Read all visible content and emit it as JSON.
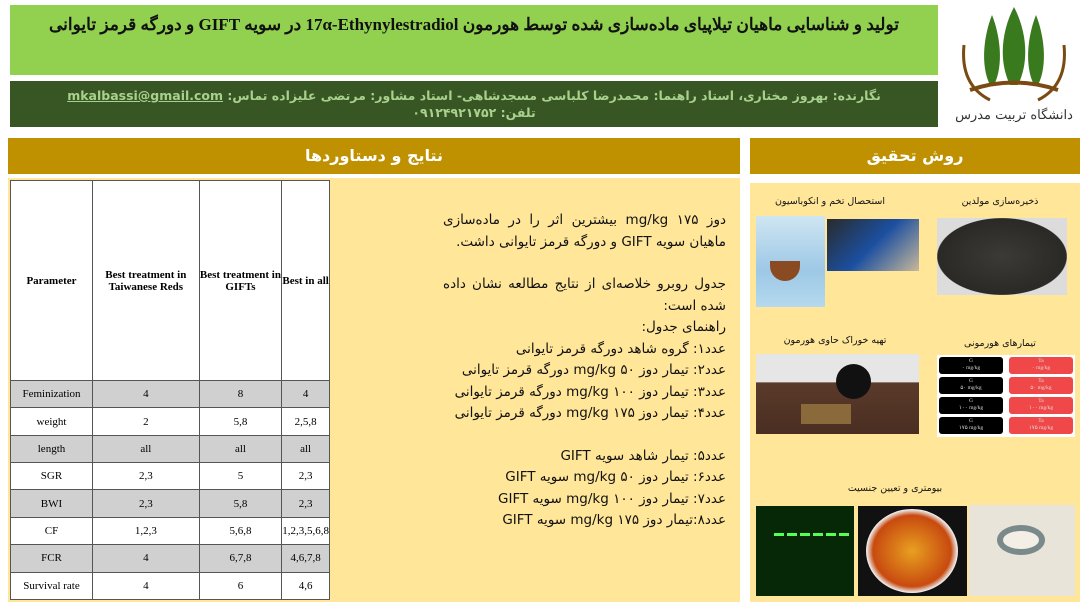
{
  "header": {
    "title": "تولید و شناسایی ماهیان تیلاپیای ماده‌سازی شده توسط هورمون 17α-Ethynylestradiol در سویه GIFT و دورگه قرمز تایوانی",
    "authors_line": "نگارنده: بهروز مختاری، استاد راهنما: محمدرضا کلباسی مسجدشاهی-  استاد مشاور: مرتضی علیزاده تماس:",
    "email": "mkalbassi@gmail.com",
    "phone": "تلفن: ۰۹۱۲۴۹۲۱۷۵۲",
    "logo_text": "دانشگاه تربیت مدرس"
  },
  "results": {
    "heading": "نتایج و دستاوردها",
    "table": {
      "headers": [
        "Parameter",
        "Best treatment in Taiwanese Reds",
        "Best treatment in GIFTs",
        "Best in all"
      ],
      "rows": [
        [
          "Feminization",
          "4",
          "8",
          "4"
        ],
        [
          "weight",
          "2",
          "5,8",
          "2,5,8"
        ],
        [
          "length",
          "all",
          "all",
          "all"
        ],
        [
          "SGR",
          "2,3",
          "5",
          "2,3"
        ],
        [
          "BWI",
          "2,3",
          "5,8",
          "2,3"
        ],
        [
          "CF",
          "1,2,3",
          "5,6,8",
          "1,2,3,5,6,8"
        ],
        [
          "FCR",
          "4",
          "6,7,8",
          "4,6,7,8"
        ],
        [
          "Survival rate",
          "4",
          "6",
          "4,6"
        ]
      ]
    },
    "paragraph1": "دوز ۱۷۵ mg/kg بیشترین اثر را در ماده‌سازی ماهیان سویه GIFT و دورگه قرمز تایوانی داشت.",
    "paragraph2": "جدول روبرو خلاصه‌ای از نتایج مطالعه نشان داده شده است:",
    "guide_title": "راهنمای جدول:",
    "guide": [
      "عدد۱: گروه شاهد دورگه قرمز تایوانی",
      "عدد۲: تیمار دوز ۵۰ mg/kg دورگه قرمز تایوانی",
      "عدد۳: تیمار دوز ۱۰۰ mg/kg دورگه قرمز تایوانی",
      "عدد۴: تیمار دوز ۱۷۵ mg/kg دورگه قرمز تایوانی"
    ],
    "guide2": [
      "عدد۵: تیمار شاهد سویه GIFT",
      "عدد۶: تیمار دوز ۵۰ mg/kg سویه GIFT",
      "عدد۷: تیمار دوز ۱۰۰ mg/kg سویه GIFT",
      "عدد۸:تیمار دوز ۱۷۵ mg/kg سویه GIFT"
    ]
  },
  "methods": {
    "heading": "روش تحقیق",
    "captions": [
      "استحصال تخم و انکوباسیون",
      "ذخیره‌سازی مولدین",
      "تهیه خوراک حاوی هورمون",
      "تیمارهای هورمونی",
      "بیومتری و تعیین جنسیت"
    ],
    "treatments": {
      "g": [
        "G",
        "۰ mg/kg",
        "G",
        "۵۰ mg/kg",
        "G",
        "۱۰۰ mg/kg",
        "G",
        "۱۷۵ mg/kg"
      ],
      "ta": [
        "Ta",
        "۰ mg/kg",
        "Ta",
        "۵۰ mg/kg",
        "Ta",
        "۱۰۰ mg/kg",
        "Ta",
        "۱۷۵ mg/kg"
      ]
    }
  },
  "colors": {
    "title_bg": "#92d050",
    "author_bg": "#375623",
    "header_bg": "#bf9000",
    "panel_bg": "#ffe699",
    "treat_g": "#000000",
    "treat_ta": "#f04848"
  }
}
